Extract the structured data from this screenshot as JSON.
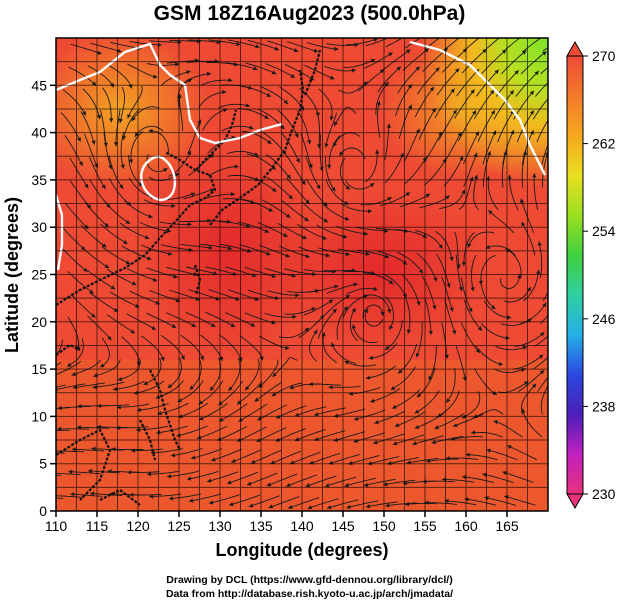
{
  "title": "GSM 18Z16Aug2023 (500.0hPa)",
  "x_axis": {
    "label": "Longitude (degrees)",
    "range": [
      110,
      170
    ],
    "ticks": [
      110,
      115,
      120,
      125,
      130,
      135,
      140,
      145,
      150,
      155,
      160,
      165
    ]
  },
  "y_axis": {
    "label": "Latitude  (degrees)",
    "range": [
      0,
      50
    ],
    "ticks": [
      0,
      5,
      10,
      15,
      20,
      25,
      30,
      35,
      40,
      45
    ]
  },
  "colorbar": {
    "range": [
      230,
      270
    ],
    "tick_labels": [
      "270",
      "262",
      "254",
      "246",
      "238",
      "230"
    ],
    "colors": [
      "#e8317a",
      "#c020c0",
      "#4b1fb8",
      "#2a48e0",
      "#25b0e8",
      "#2fd0a0",
      "#40d040",
      "#9ae020",
      "#e8e020",
      "#f6a81f",
      "#f47a2a",
      "#ef4a38"
    ]
  },
  "credits": {
    "line1": "Drawing by DCL (https://www.gfd-dennou.org/library/dcl/)",
    "line2": "Data from http://database.rish.kyoto-u.ac.jp/arch/jmadata/"
  },
  "features": {
    "vortices": [
      {
        "name": "vortex-east-of-taiwan-anticyclone",
        "lon": 149,
        "lat": 21
      },
      {
        "name": "vortex-east-pacific",
        "lon": 165,
        "lat": 24.5
      },
      {
        "name": "vortex-north-pacific",
        "lon": 146.5,
        "lat": 35.5
      },
      {
        "name": "vortex-yellow-sea",
        "lon": 122,
        "lat": 37
      }
    ]
  }
}
